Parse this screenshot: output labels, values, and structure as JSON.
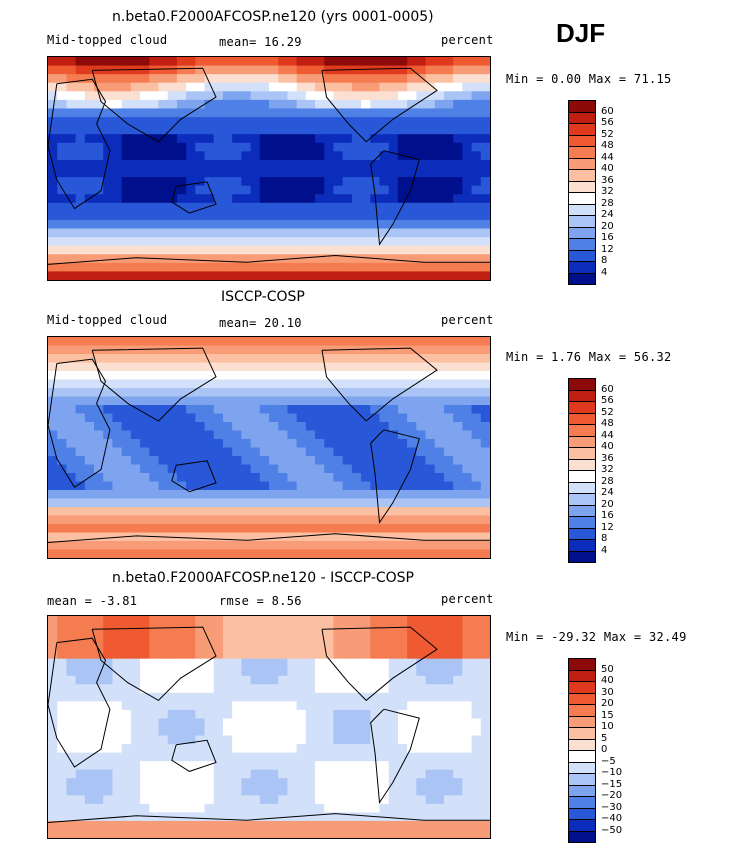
{
  "season": "DJF",
  "panels": [
    {
      "title": "n.beta0.F2000AFCOSP.ne120 (yrs 0001-0005)",
      "left_label": "Mid-topped cloud",
      "center_label": "mean=  16.29",
      "right_label": "percent",
      "minmax": "Min =   0.00 Max =  71.15",
      "kind": "model"
    },
    {
      "title": "ISCCP-COSP",
      "left_label": "Mid-topped cloud",
      "center_label": "mean=  20.10",
      "right_label": "percent",
      "minmax": "Min =   1.76 Max =  56.32",
      "kind": "obs"
    },
    {
      "title": "n.beta0.F2000AFCOSP.ne120 - ISCCP-COSP",
      "left_label": "mean =  -3.81",
      "center_label": "rmse =   8.56",
      "right_label": "percent",
      "minmax": "Min = -29.32 Max =  32.49",
      "kind": "diff"
    }
  ],
  "chart_data": [
    {
      "type": "heatmap",
      "title": "n.beta0.F2000AFCOSP.ne120 (yrs 0001-0005)",
      "variable": "Mid-topped cloud",
      "units": "percent",
      "mean": 16.29,
      "min": 0.0,
      "max": 71.15,
      "levels": [
        "60",
        "56",
        "52",
        "48",
        "44",
        "40",
        "36",
        "32",
        "28",
        "24",
        "20",
        "16",
        "12",
        "8",
        "4"
      ],
      "colors": [
        "#8c0a0a",
        "#c01e10",
        "#e03a1e",
        "#f05a32",
        "#f47c50",
        "#f89c78",
        "#fbbfa2",
        "#fbdfd0",
        "#ffffff",
        "#d2e0fa",
        "#aac4f5",
        "#7ea4ef",
        "#4e80e6",
        "#2858d8",
        "#0c2cbc",
        "#00108c"
      ]
    },
    {
      "type": "heatmap",
      "title": "ISCCP-COSP",
      "variable": "Mid-topped cloud",
      "units": "percent",
      "mean": 20.1,
      "min": 1.76,
      "max": 56.32,
      "levels": [
        "60",
        "56",
        "52",
        "48",
        "44",
        "40",
        "36",
        "32",
        "28",
        "24",
        "20",
        "16",
        "12",
        "8",
        "4"
      ],
      "colors": [
        "#8c0a0a",
        "#c01e10",
        "#e03a1e",
        "#f05a32",
        "#f47c50",
        "#f89c78",
        "#fbbfa2",
        "#fbdfd0",
        "#ffffff",
        "#d2e0fa",
        "#aac4f5",
        "#7ea4ef",
        "#4e80e6",
        "#2858d8",
        "#0c2cbc",
        "#00108c"
      ]
    },
    {
      "type": "heatmap",
      "title": "n.beta0.F2000AFCOSP.ne120 - ISCCP-COSP",
      "units": "percent",
      "mean": -3.81,
      "rmse": 8.56,
      "min": -29.32,
      "max": 32.49,
      "levels": [
        "50",
        "40",
        "30",
        "20",
        "15",
        "10",
        "5",
        "0",
        "-5",
        "-10",
        "-15",
        "-20",
        "-30",
        "-40",
        "-50"
      ],
      "colors": [
        "#8c0a0a",
        "#c01e10",
        "#e03a1e",
        "#f05a32",
        "#f47c50",
        "#f89c78",
        "#fbbfa2",
        "#fbdfd0",
        "#ffffff",
        "#d2e0fa",
        "#aac4f5",
        "#7ea4ef",
        "#4e80e6",
        "#2858d8",
        "#0c2cbc",
        "#00108c"
      ]
    }
  ]
}
